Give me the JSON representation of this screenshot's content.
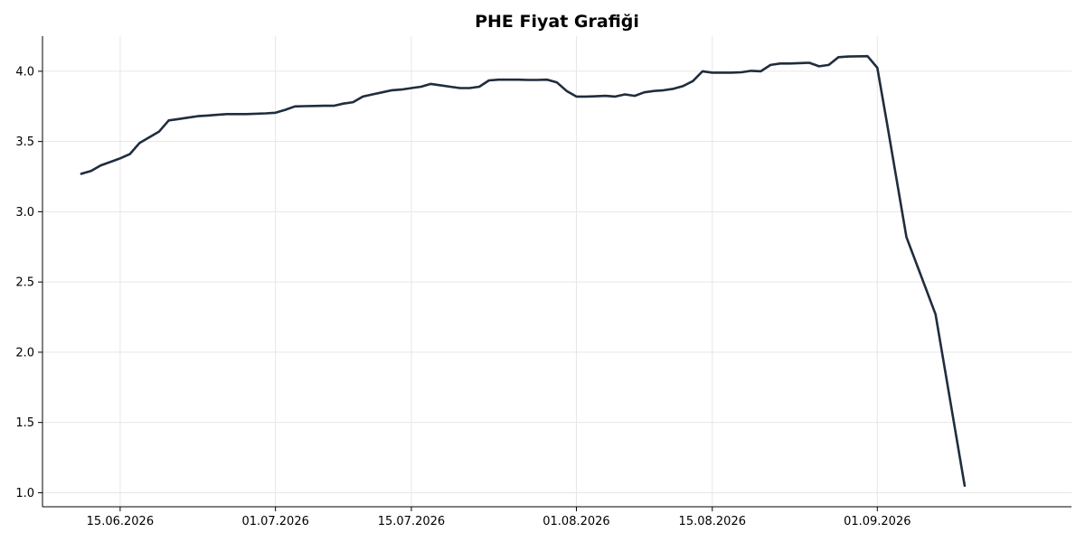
{
  "chart_data": {
    "type": "line",
    "title": "PHE Fiyat Grafiği",
    "xlabel": "",
    "ylabel": "",
    "ylim": [
      0.9,
      4.25
    ],
    "xlim": [
      "2026-06-07",
      "2026-09-21"
    ],
    "grid": true,
    "line_color": "#1f2d3d",
    "x_ticks": [
      {
        "date": "2026-06-15",
        "label": "15.06.2026"
      },
      {
        "date": "2026-07-01",
        "label": "01.07.2026"
      },
      {
        "date": "2026-07-15",
        "label": "15.07.2026"
      },
      {
        "date": "2026-08-01",
        "label": "01.08.2026"
      },
      {
        "date": "2026-08-15",
        "label": "15.08.2026"
      },
      {
        "date": "2026-09-01",
        "label": "01.09.2026"
      }
    ],
    "y_ticks": [
      {
        "value": 1.0,
        "label": "1.0"
      },
      {
        "value": 1.5,
        "label": "1.5"
      },
      {
        "value": 2.0,
        "label": "2.0"
      },
      {
        "value": 2.5,
        "label": "2.5"
      },
      {
        "value": 3.0,
        "label": "3.0"
      },
      {
        "value": 3.5,
        "label": "3.5"
      },
      {
        "value": 4.0,
        "label": "4.0"
      }
    ],
    "series": [
      {
        "points": [
          [
            "2026-06-11",
            3.27
          ],
          [
            "2026-06-12",
            3.29
          ],
          [
            "2026-06-13",
            3.33
          ],
          [
            "2026-06-15",
            3.38
          ],
          [
            "2026-06-16",
            3.41
          ],
          [
            "2026-06-17",
            3.49
          ],
          [
            "2026-06-18",
            3.53
          ],
          [
            "2026-06-19",
            3.57
          ],
          [
            "2026-06-20",
            3.65
          ],
          [
            "2026-06-21",
            3.66
          ],
          [
            "2026-06-22",
            3.67
          ],
          [
            "2026-06-23",
            3.68
          ],
          [
            "2026-06-24",
            3.685
          ],
          [
            "2026-06-25",
            3.69
          ],
          [
            "2026-06-26",
            3.695
          ],
          [
            "2026-06-27",
            3.695
          ],
          [
            "2026-06-28",
            3.695
          ],
          [
            "2026-06-30",
            3.7
          ],
          [
            "2026-07-01",
            3.705
          ],
          [
            "2026-07-02",
            3.725
          ],
          [
            "2026-07-03",
            3.75
          ],
          [
            "2026-07-04",
            3.752
          ],
          [
            "2026-07-05",
            3.753
          ],
          [
            "2026-07-06",
            3.754
          ],
          [
            "2026-07-07",
            3.754
          ],
          [
            "2026-07-08",
            3.77
          ],
          [
            "2026-07-09",
            3.78
          ],
          [
            "2026-07-10",
            3.82
          ],
          [
            "2026-07-11",
            3.835
          ],
          [
            "2026-07-12",
            3.85
          ],
          [
            "2026-07-13",
            3.865
          ],
          [
            "2026-07-14",
            3.87
          ],
          [
            "2026-07-15",
            3.88
          ],
          [
            "2026-07-16",
            3.89
          ],
          [
            "2026-07-17",
            3.91
          ],
          [
            "2026-07-18",
            3.9
          ],
          [
            "2026-07-19",
            3.89
          ],
          [
            "2026-07-20",
            3.88
          ],
          [
            "2026-07-21",
            3.88
          ],
          [
            "2026-07-22",
            3.89
          ],
          [
            "2026-07-23",
            3.935
          ],
          [
            "2026-07-24",
            3.94
          ],
          [
            "2026-07-25",
            3.94
          ],
          [
            "2026-07-26",
            3.94
          ],
          [
            "2026-07-27",
            3.938
          ],
          [
            "2026-07-28",
            3.938
          ],
          [
            "2026-07-29",
            3.94
          ],
          [
            "2026-07-30",
            3.92
          ],
          [
            "2026-07-31",
            3.86
          ],
          [
            "2026-08-01",
            3.82
          ],
          [
            "2026-08-02",
            3.82
          ],
          [
            "2026-08-03",
            3.822
          ],
          [
            "2026-08-04",
            3.825
          ],
          [
            "2026-08-05",
            3.82
          ],
          [
            "2026-08-06",
            3.835
          ],
          [
            "2026-08-07",
            3.825
          ],
          [
            "2026-08-08",
            3.85
          ],
          [
            "2026-08-09",
            3.86
          ],
          [
            "2026-08-10",
            3.865
          ],
          [
            "2026-08-11",
            3.875
          ],
          [
            "2026-08-12",
            3.895
          ],
          [
            "2026-08-13",
            3.93
          ],
          [
            "2026-08-14",
            4.0
          ],
          [
            "2026-08-15",
            3.99
          ],
          [
            "2026-08-16",
            3.99
          ],
          [
            "2026-08-17",
            3.99
          ],
          [
            "2026-08-18",
            3.993
          ],
          [
            "2026-08-19",
            4.003
          ],
          [
            "2026-08-20",
            4.0
          ],
          [
            "2026-08-21",
            4.045
          ],
          [
            "2026-08-22",
            4.055
          ],
          [
            "2026-08-23",
            4.055
          ],
          [
            "2026-08-25",
            4.06
          ],
          [
            "2026-08-26",
            4.035
          ],
          [
            "2026-08-27",
            4.045
          ],
          [
            "2026-08-28",
            4.1
          ],
          [
            "2026-08-29",
            4.105
          ],
          [
            "2026-08-31",
            4.107
          ],
          [
            "2026-09-01",
            4.025
          ],
          [
            "2026-09-02",
            3.63
          ],
          [
            "2026-09-04",
            2.82
          ],
          [
            "2026-09-07",
            2.27
          ],
          [
            "2026-09-10",
            1.05
          ]
        ]
      }
    ]
  }
}
